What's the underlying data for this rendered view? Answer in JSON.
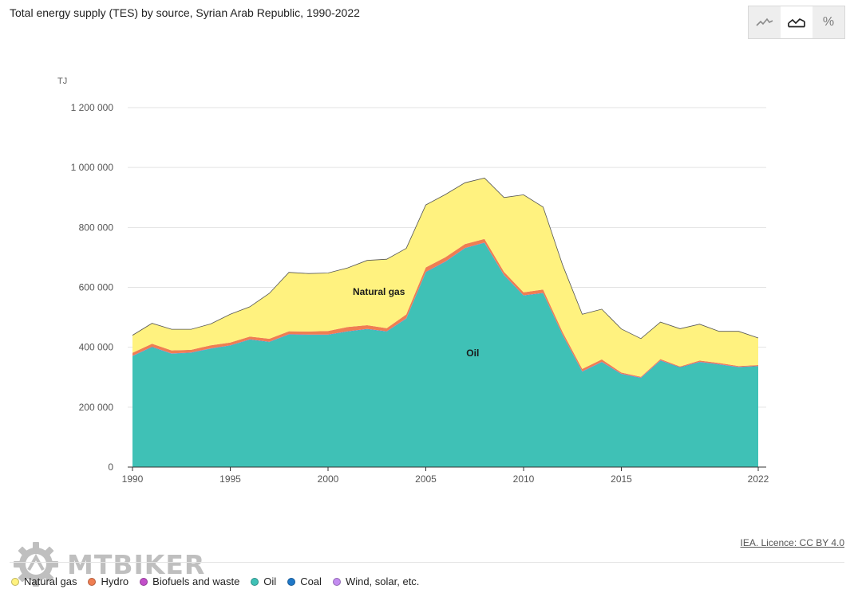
{
  "header": {
    "title": "Total energy supply (TES) by source, Syrian Arab Republic, 1990-2022"
  },
  "view_toggle": {
    "options": [
      {
        "name": "line-chart-icon",
        "active": false
      },
      {
        "name": "area-chart-icon",
        "active": true
      },
      {
        "name": "percent-icon",
        "label": "%",
        "active": false
      }
    ]
  },
  "footer": {
    "credit": "IEA. Licence: CC BY 4.0",
    "watermark": "MTBIKER"
  },
  "chart_data": {
    "type": "area",
    "stacked": true,
    "title": "Total energy supply (TES) by source, Syrian Arab Republic, 1990-2022",
    "ylabel": "TJ",
    "xlabel": "",
    "ylim": [
      0,
      1200000
    ],
    "xlim": [
      1990,
      2022
    ],
    "y_ticks": [
      0,
      200000,
      400000,
      600000,
      800000,
      1000000,
      1200000
    ],
    "y_tick_labels": [
      "0",
      "200 000",
      "400 000",
      "600 000",
      "800 000",
      "1 000 000",
      "1 200 000"
    ],
    "x_ticks": [
      1990,
      1995,
      2000,
      2005,
      2010,
      2015,
      2022
    ],
    "grid": true,
    "x": [
      1990,
      1991,
      1992,
      1993,
      1994,
      1995,
      1996,
      1997,
      1998,
      1999,
      2000,
      2001,
      2002,
      2003,
      2004,
      2005,
      2006,
      2007,
      2008,
      2009,
      2010,
      2011,
      2012,
      2013,
      2014,
      2015,
      2016,
      2017,
      2018,
      2019,
      2020,
      2021,
      2022
    ],
    "series": [
      {
        "name": "Oil",
        "color": "#3fc1b6",
        "values": [
          370000,
          400000,
          378000,
          381000,
          395000,
          405000,
          425000,
          417000,
          442000,
          441000,
          441000,
          452000,
          460000,
          452000,
          495000,
          650000,
          685000,
          730000,
          748000,
          640000,
          572000,
          580000,
          440000,
          318000,
          350000,
          310000,
          297000,
          355000,
          332000,
          350000,
          342000,
          333000,
          336000
        ]
      },
      {
        "name": "Coal",
        "color": "#1f78c8",
        "values": [
          1000,
          1000,
          1000,
          1000,
          1000,
          1000,
          1000,
          1000,
          1000,
          1000,
          1000,
          1000,
          1000,
          1000,
          1000,
          1000,
          1000,
          1000,
          1000,
          1000,
          1000,
          1000,
          1000,
          1000,
          1000,
          1000,
          1000,
          1000,
          1000,
          1000,
          1000,
          1000,
          1000
        ]
      },
      {
        "name": "Biofuels and waste",
        "color": "#c24fc9",
        "values": [
          500,
          500,
          500,
          500,
          500,
          500,
          500,
          500,
          500,
          500,
          500,
          500,
          500,
          500,
          500,
          500,
          500,
          500,
          500,
          500,
          500,
          500,
          500,
          500,
          500,
          500,
          500,
          500,
          500,
          500,
          500,
          500,
          500
        ]
      },
      {
        "name": "Hydro",
        "color": "#ef7e52",
        "values": [
          10000,
          10000,
          10000,
          9000,
          10000,
          9000,
          9000,
          10000,
          10000,
          10000,
          12000,
          14000,
          12000,
          10000,
          13000,
          15000,
          14000,
          13000,
          12000,
          10000,
          10000,
          11000,
          9000,
          8000,
          8000,
          4000,
          3000,
          4000,
          2500,
          4000,
          4000,
          3000,
          3000
        ]
      },
      {
        "name": "Wind, solar, etc.",
        "color": "#c38cf0",
        "values": [
          0,
          0,
          0,
          0,
          0,
          0,
          0,
          0,
          0,
          0,
          0,
          0,
          0,
          0,
          0,
          0,
          0,
          0,
          0,
          0,
          0,
          0,
          0,
          0,
          0,
          0,
          0,
          0,
          0,
          0,
          0,
          0,
          0
        ]
      },
      {
        "name": "Natural gas",
        "color": "#fff27f",
        "values": [
          58500,
          68500,
          70500,
          68500,
          71500,
          94500,
          99500,
          151500,
          196500,
          193500,
          193500,
          197500,
          216500,
          230500,
          220500,
          208500,
          209500,
          204500,
          203500,
          248500,
          325500,
          275500,
          223500,
          182500,
          167500,
          145500,
          127500,
          123500,
          126000,
          121500,
          105500,
          115500,
          90500
        ]
      }
    ],
    "annotations": [
      {
        "text": "Natural gas",
        "x": 2002.6,
        "y": 575000
      },
      {
        "text": "Oil",
        "x": 2007.4,
        "y": 370000
      }
    ],
    "legend": {
      "position": "bottom-left",
      "items": [
        {
          "label": "Natural gas",
          "color": "#fff27f"
        },
        {
          "label": "Hydro",
          "color": "#ef7e52"
        },
        {
          "label": "Biofuels and waste",
          "color": "#c24fc9"
        },
        {
          "label": "Oil",
          "color": "#3fc1b6"
        },
        {
          "label": "Coal",
          "color": "#1f78c8"
        },
        {
          "label": "Wind, solar, etc.",
          "color": "#c38cf0"
        }
      ]
    }
  }
}
